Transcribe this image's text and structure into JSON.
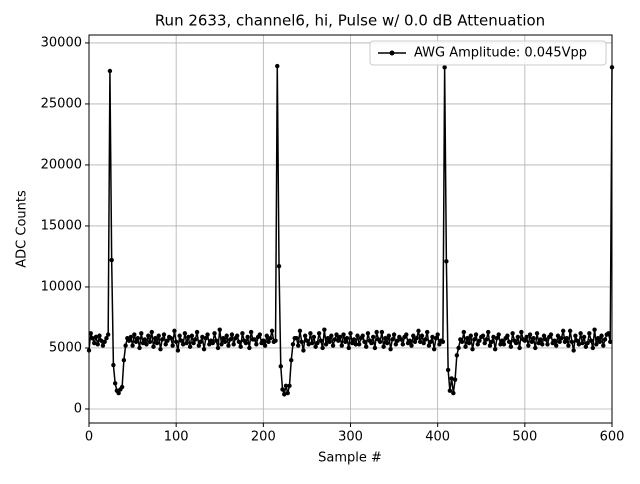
{
  "chart_data": {
    "type": "line",
    "title": "Run 2633, channel6, hi, Pulse w/ 0.0 dB Attenuation",
    "xlabel": "Sample #",
    "ylabel": "ADC Counts",
    "x": [
      0,
      2,
      4,
      6,
      8,
      10,
      12,
      14,
      16,
      18,
      20,
      22,
      24,
      26,
      28,
      30,
      32,
      34,
      36,
      38,
      40,
      42,
      44,
      46,
      48,
      50,
      52,
      54,
      56,
      58,
      60,
      62,
      64,
      66,
      68,
      70,
      72,
      74,
      76,
      78,
      80,
      82,
      84,
      86,
      88,
      90,
      92,
      94,
      96,
      98,
      100,
      102,
      104,
      106,
      108,
      110,
      112,
      114,
      116,
      118,
      120,
      122,
      124,
      126,
      128,
      130,
      132,
      134,
      136,
      138,
      140,
      142,
      144,
      146,
      148,
      150,
      152,
      154,
      156,
      158,
      160,
      162,
      164,
      166,
      168,
      170,
      172,
      174,
      176,
      178,
      180,
      182,
      184,
      186,
      188,
      190,
      192,
      194,
      196,
      198,
      200,
      202,
      204,
      206,
      208,
      210,
      212,
      214,
      216,
      218,
      220,
      222,
      224,
      226,
      228,
      230,
      232,
      234,
      236,
      238,
      240,
      242,
      244,
      246,
      248,
      250,
      252,
      254,
      256,
      258,
      260,
      262,
      264,
      266,
      268,
      270,
      272,
      274,
      276,
      278,
      280,
      282,
      284,
      286,
      288,
      290,
      292,
      294,
      296,
      298,
      300,
      302,
      304,
      306,
      308,
      310,
      312,
      314,
      316,
      318,
      320,
      322,
      324,
      326,
      328,
      330,
      332,
      334,
      336,
      338,
      340,
      342,
      344,
      346,
      348,
      350,
      352,
      354,
      356,
      358,
      360,
      362,
      364,
      366,
      368,
      370,
      372,
      374,
      376,
      378,
      380,
      382,
      384,
      386,
      388,
      390,
      392,
      394,
      396,
      398,
      400,
      402,
      404,
      406,
      408,
      410,
      412,
      414,
      416,
      418,
      420,
      422,
      424,
      426,
      428,
      430,
      432,
      434,
      436,
      438,
      440,
      442,
      444,
      446,
      448,
      450,
      452,
      454,
      456,
      458,
      460,
      462,
      464,
      466,
      468,
      470,
      472,
      474,
      476,
      478,
      480,
      482,
      484,
      486,
      488,
      490,
      492,
      494,
      496,
      498,
      500,
      502,
      504,
      506,
      508,
      510,
      512,
      514,
      516,
      518,
      520,
      522,
      524,
      526,
      528,
      530,
      532,
      534,
      536,
      538,
      540,
      542,
      544,
      546,
      548,
      550,
      552,
      554,
      556,
      558,
      560,
      562,
      564,
      566,
      568,
      570,
      572,
      574,
      576,
      578,
      580,
      582,
      584,
      586,
      588,
      590,
      592,
      594,
      596,
      598,
      600
    ],
    "series": [
      {
        "name": "AWG Amplitude: 0.045Vpp",
        "color": "#000000",
        "values": [
          4800,
          6200,
          5800,
          5400,
          5900,
          5300,
          6000,
          5600,
          5200,
          5500,
          5800,
          6100,
          27700,
          12200,
          3600,
          2100,
          1500,
          1300,
          1600,
          1800,
          4000,
          5200,
          5800,
          5600,
          5900,
          5200,
          6100,
          5500,
          5800,
          5000,
          6200,
          5400,
          5700,
          5300,
          6000,
          5500,
          6300,
          5100,
          5800,
          5400,
          6000,
          4900,
          5700,
          6100,
          5300,
          5600,
          5900,
          5800,
          5200,
          6400,
          5500,
          4800,
          6000,
          5600,
          5300,
          6200,
          5400,
          5900,
          5100,
          6000,
          5400,
          5700,
          6300,
          5200,
          5500,
          5900,
          4900,
          5800,
          6100,
          5300,
          5600,
          5400,
          6200,
          5600,
          5000,
          6500,
          5300,
          5800,
          5500,
          6000,
          5200,
          5700,
          6100,
          5300,
          5800,
          6000,
          5500,
          5100,
          6200,
          5600,
          5400,
          5900,
          5000,
          6300,
          5700,
          5700,
          5300,
          5900,
          6100,
          5400,
          5600,
          5200,
          6000,
          5500,
          5800,
          6400,
          5500,
          5600,
          28100,
          11700,
          3500,
          1600,
          1200,
          1900,
          1300,
          1900,
          4000,
          5300,
          5800,
          5800,
          5200,
          6400,
          5500,
          4800,
          6000,
          5600,
          5300,
          6200,
          5400,
          5900,
          5100,
          5400,
          6200,
          5600,
          5000,
          6500,
          5300,
          5800,
          5500,
          6000,
          5200,
          5700,
          6100,
          5600,
          5900,
          5200,
          6100,
          5500,
          5800,
          5000,
          6200,
          5400,
          5700,
          5300,
          6000,
          5300,
          5800,
          6000,
          5500,
          5100,
          6200,
          5600,
          5400,
          5900,
          5000,
          6300,
          5700,
          5500,
          6300,
          5100,
          5800,
          5400,
          6000,
          4900,
          5700,
          6100,
          5300,
          5600,
          5900,
          5700,
          5300,
          5900,
          6100,
          5400,
          5600,
          5200,
          6000,
          5500,
          5800,
          6400,
          5500,
          6000,
          5400,
          5700,
          6300,
          5200,
          5500,
          5900,
          4900,
          5800,
          6100,
          5300,
          5600,
          5500,
          28000,
          12100,
          3200,
          1500,
          2500,
          1300,
          2400,
          4400,
          5000,
          5700,
          5500,
          6300,
          5100,
          5800,
          5400,
          6000,
          4900,
          5700,
          6100,
          5300,
          5600,
          5900,
          6000,
          5400,
          5700,
          6300,
          5200,
          5500,
          5900,
          4900,
          5800,
          6100,
          5300,
          5600,
          5300,
          5800,
          6000,
          5500,
          5100,
          6200,
          5600,
          5400,
          5900,
          5000,
          6300,
          5700,
          5600,
          5900,
          5200,
          6100,
          5500,
          5800,
          5000,
          6200,
          5400,
          5700,
          5300,
          6000,
          5700,
          5300,
          5900,
          6100,
          5400,
          5600,
          5200,
          6000,
          5500,
          5800,
          6400,
          5500,
          5800,
          5200,
          6400,
          5500,
          4800,
          6000,
          5600,
          5300,
          6200,
          5400,
          5900,
          5100,
          5400,
          6200,
          5600,
          5000,
          6500,
          5300,
          5800,
          5500,
          6000,
          5200,
          5700,
          6100,
          6200,
          5500,
          28000
        ]
      }
    ],
    "xlim": [
      0,
      600
    ],
    "xticks": [
      0,
      100,
      200,
      300,
      400,
      500,
      600
    ],
    "ylim": [
      -1150,
      30650
    ],
    "yticks": [
      0,
      5000,
      10000,
      15000,
      20000,
      25000,
      30000
    ],
    "grid": true,
    "legend": "upper right"
  }
}
